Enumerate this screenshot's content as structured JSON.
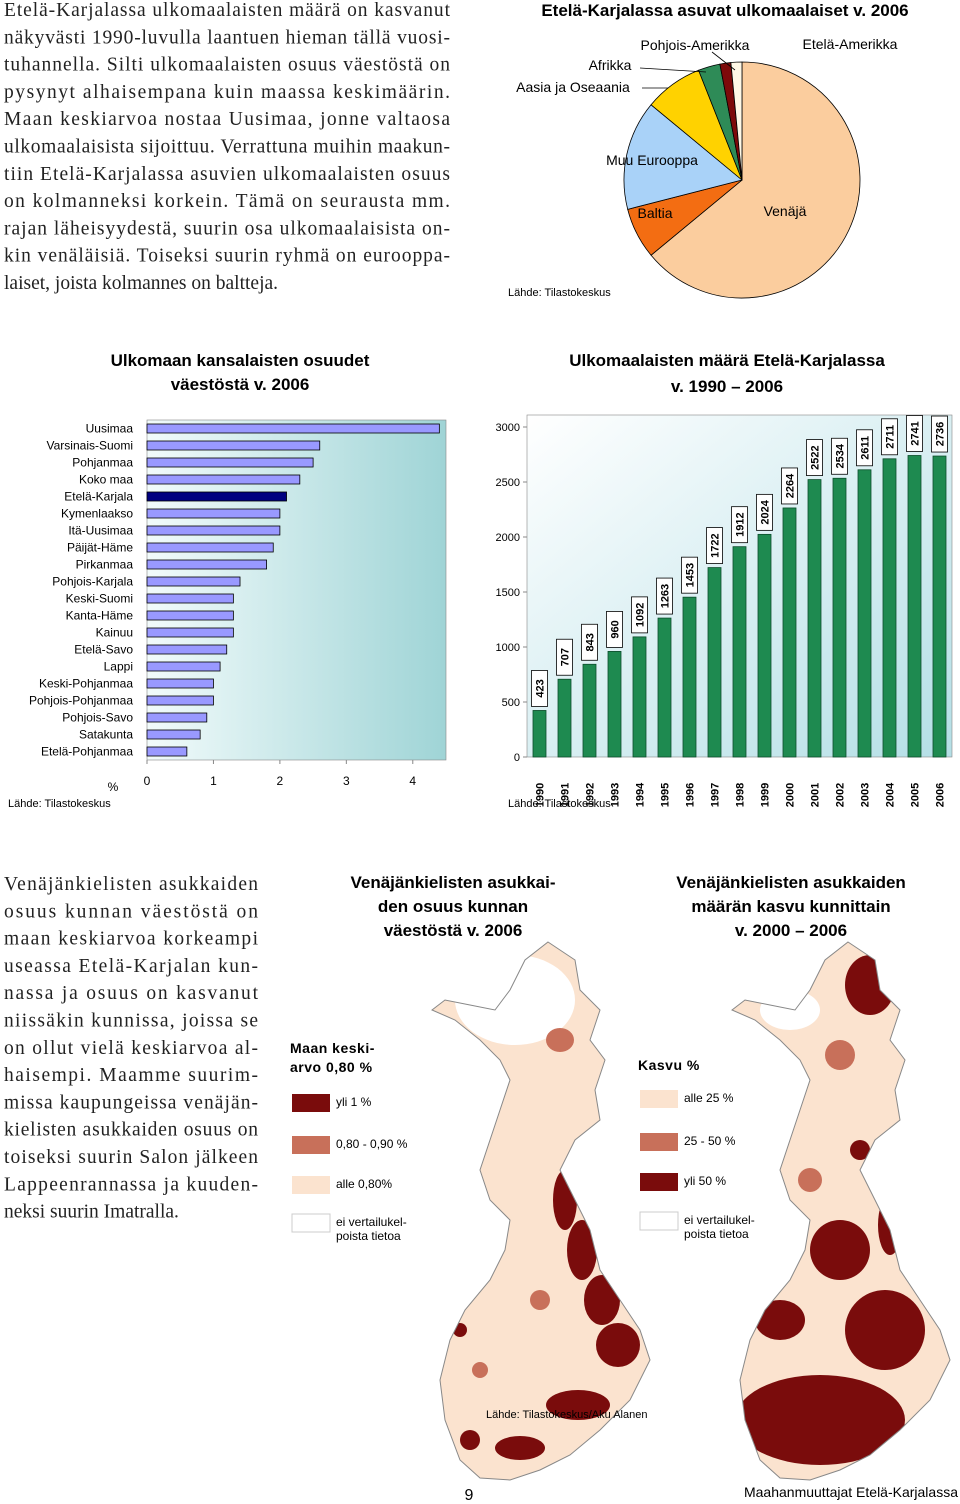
{
  "intro": {
    "lines": [
      "Etelä-Karjalassa ulkomaalaisten määrä on kasvanut",
      "näkyvästi 1990-luvulla laantuen hieman tällä vuosi-",
      "tuhannella. Silti ulkomaalaisten osuus väestöstä on",
      "pysynyt alhaisempana kuin maassa keskimäärin.",
      "Maan keskiarvoa nostaa Uusimaa, jonne valtaosa",
      "ulkomaalaisista sijoittuu. Verrattuna muihin maakun-",
      "tiin Etelä-Karjalassa asuvien ulkomaalaisten osuus",
      "on kolmanneksi korkein. Tämä on seurausta mm.",
      "rajan läheisyydestä, suurin osa ulkomaalaisista on-",
      "kin venäläisiä. Toiseksi suurin ryhmä on eurooppa-",
      "laiset, joista kolmannes on baltteja."
    ]
  },
  "chart_data": [
    {
      "type": "pie",
      "title": "Etelä-Karjalassa asuvat ulkomaalaiset v. 2006",
      "categories": [
        "Venäjä",
        "Baltia",
        "Muu Eurooppa",
        "Aasia ja  Oseaania",
        "Afrikka",
        "Pohjois-Amerikka",
        "Etelä-Amerikka"
      ],
      "values": [
        64,
        7,
        15,
        8,
        3,
        1.5,
        1.5
      ],
      "colors": [
        "#fbcd9e",
        "#f36d12",
        "#a9d2f8",
        "#ffd200",
        "#2e8b57",
        "#7d0a0a",
        "#fff8e6"
      ],
      "source": "Lähde: Tilastokeskus"
    },
    {
      "type": "bar",
      "orientation": "horizontal",
      "title": [
        "Ulkomaan kansalaisten osuudet",
        "väestöstä v. 2006"
      ],
      "categories": [
        "Uusimaa",
        "Varsinais-Suomi",
        "Pohjanmaa",
        "Koko maa",
        "Etelä-Karjala",
        "Kymenlaakso",
        "Itä-Uusimaa",
        "Päijät-Häme",
        "Pirkanmaa",
        "Pohjois-Karjala",
        "Keski-Suomi",
        "Kanta-Häme",
        "Kainuu",
        "Etelä-Savo",
        "Lappi",
        "Keski-Pohjanmaa",
        "Pohjois-Pohjanmaa",
        "Pohjois-Savo",
        "Satakunta",
        "Etelä-Pohjanmaa"
      ],
      "values": [
        4.4,
        2.6,
        2.5,
        2.3,
        2.1,
        2.0,
        2.0,
        1.9,
        1.8,
        1.4,
        1.3,
        1.3,
        1.3,
        1.2,
        1.1,
        1.0,
        1.0,
        0.9,
        0.8,
        0.6
      ],
      "colors": [
        "#9999ff",
        "#9999ff",
        "#9999ff",
        "#9999ff",
        "#000080",
        "#9999ff",
        "#9999ff",
        "#9999ff",
        "#9999ff",
        "#9999ff",
        "#9999ff",
        "#9999ff",
        "#9999ff",
        "#9999ff",
        "#9999ff",
        "#9999ff",
        "#9999ff",
        "#9999ff",
        "#9999ff",
        "#9999ff"
      ],
      "x_label": "%",
      "xlim": [
        0,
        4.5
      ],
      "xticks": [
        0,
        1,
        2,
        3,
        4
      ],
      "source": "Lähde: Tilastokeskus"
    },
    {
      "type": "bar",
      "orientation": "vertical",
      "title": [
        "Ulkomaalaisten määrä Etelä-Karjalassa",
        "v. 1990 – 2006"
      ],
      "categories": [
        "1990",
        "1991",
        "1992",
        "1993",
        "1994",
        "1995",
        "1996",
        "1997",
        "1998",
        "1999",
        "2000",
        "2001",
        "2002",
        "2003",
        "2004",
        "2005",
        "2006"
      ],
      "values": [
        423,
        707,
        843,
        960,
        1092,
        1263,
        1453,
        1722,
        1912,
        2024,
        2264,
        2522,
        2534,
        2611,
        2711,
        2741,
        2736
      ],
      "color": "#1e8a50",
      "ylim": [
        0,
        3000
      ],
      "yticks": [
        0,
        500,
        1000,
        1500,
        2000,
        2500,
        3000
      ],
      "source": "Lähde: Tilastokeskus"
    }
  ],
  "body": {
    "lines": [
      "Venäjänkielisten asukkaiden",
      "osuus kunnan väestöstä on",
      "maan keskiarvoa korkeampi",
      "useassa Etelä-Karjalan kun-",
      "nassa ja osuus on kasvanut",
      "niissäkin kunnissa, joissa se",
      "on ollut vielä keskiarvoa al-",
      "haisempi. Maamme suurim-",
      "missa kaupungeissa venäjän-",
      "kielisten asukkaiden osuus on",
      "toiseksi suurin Salon jälkeen",
      "Lappeenrannassa ja kuuden-",
      "neksi suurin Imatralla."
    ]
  },
  "maps": [
    {
      "title": [
        "Venäjänkielisten asukkai-",
        "den osuus kunnan",
        "väestöstä v. 2006"
      ],
      "legend_title": [
        "Maan keski-",
        "arvo 0,80 %"
      ],
      "legend": [
        {
          "label": [
            "yli 1 %"
          ],
          "color": "#7a0c0c"
        },
        {
          "label": [
            "0,80 - 0,90 %"
          ],
          "color": "#c8705a"
        },
        {
          "label": [
            "alle 0,80%"
          ],
          "color": "#fbe3cf"
        },
        {
          "label": [
            "ei vertailukel-",
            "poista tietoa"
          ],
          "color": "#ffffff"
        }
      ]
    },
    {
      "title": [
        "Venäjänkielisten asukkaiden",
        "määrän kasvu kunnittain",
        "v. 2000 – 2006"
      ],
      "legend_title": [
        "Kasvu %"
      ],
      "legend": [
        {
          "label": [
            "alle 25 %"
          ],
          "color": "#fbe3cf"
        },
        {
          "label": [
            "25 - 50 %"
          ],
          "color": "#c8705a"
        },
        {
          "label": [
            "yli 50 %"
          ],
          "color": "#7a0c0c"
        },
        {
          "label": [
            "ei vertailukel-",
            "poista tietoa"
          ],
          "color": "#ffffff"
        }
      ]
    }
  ],
  "map_source": "Lähde: Tilastokeskus/Aku Alanen",
  "footer": {
    "page": 9,
    "publication": "Maahanmuuttajat Etelä-Karjalassa"
  }
}
